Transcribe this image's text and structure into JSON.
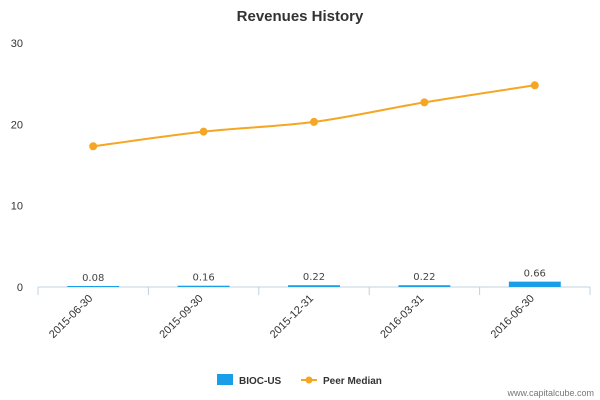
{
  "chart_data": {
    "type": "bar",
    "title": "Revenues History",
    "categories": [
      "2015-06-30",
      "2015-09-30",
      "2015-12-31",
      "2016-03-31",
      "2016-06-30"
    ],
    "ylim": [
      0,
      30
    ],
    "yticks": [
      0,
      10,
      20,
      30
    ],
    "grid": false,
    "legend_position": "bottom-center",
    "series": [
      {
        "name": "BIOC-US",
        "type": "bar",
        "color": "#1a9ee8",
        "values": [
          0.08,
          0.16,
          0.22,
          0.22,
          0.66
        ],
        "labels": [
          "0.08",
          "0.16",
          "0.22",
          "0.22",
          "0.66"
        ]
      },
      {
        "name": "Peer Median",
        "type": "line",
        "color": "#f5a623",
        "values": [
          17.3,
          19.1,
          20.3,
          22.7,
          24.8
        ]
      }
    ]
  },
  "credit": "www.capitalcube.com"
}
